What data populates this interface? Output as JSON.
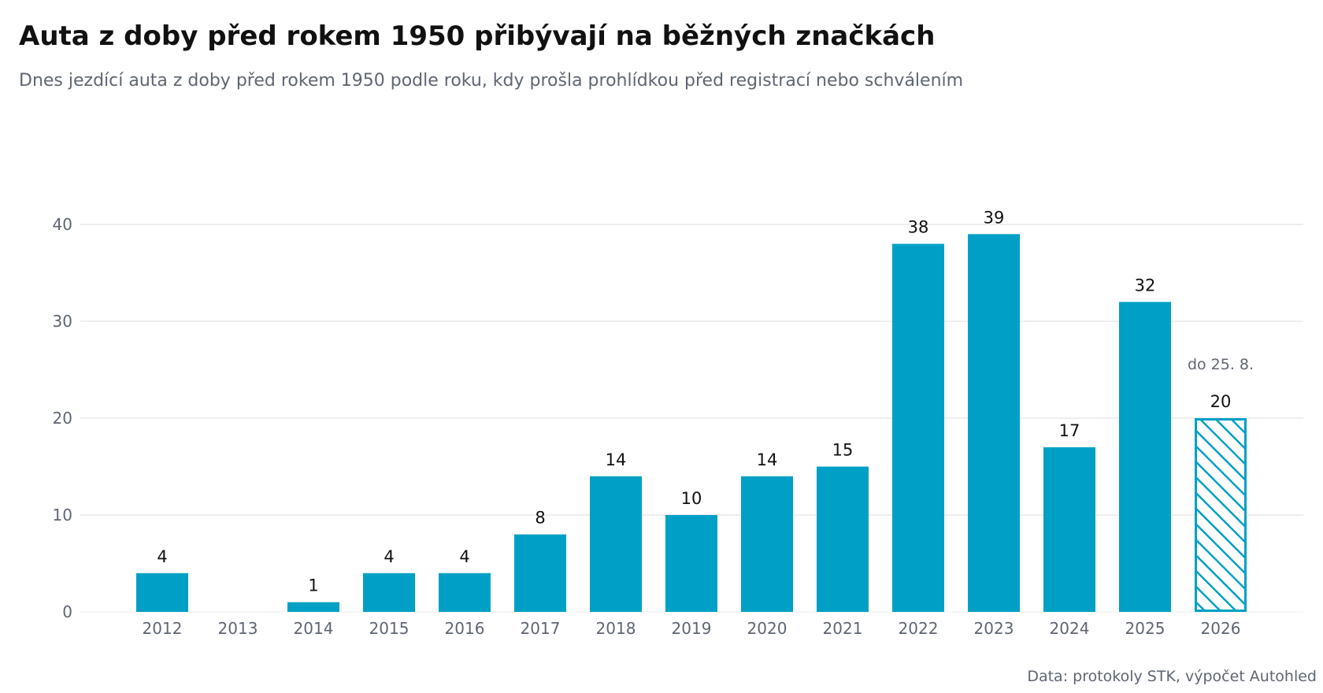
{
  "header": {
    "title": "Auta z doby před rokem 1950 přibývají na běžných značkách",
    "subtitle": "Dnes jezdící auta z doby před rokem 1950 podle roku, kdy prošla prohlídkou před registrací nebo schválením"
  },
  "footer": {
    "source": "Data: protokoly STK, výpočet Autohled"
  },
  "chart_data": {
    "type": "bar",
    "categories": [
      "2012",
      "2013",
      "2014",
      "2015",
      "2016",
      "2017",
      "2018",
      "2019",
      "2020",
      "2021",
      "2022",
      "2023",
      "2024",
      "2025",
      "2026"
    ],
    "values": [
      4,
      0,
      1,
      4,
      4,
      8,
      14,
      10,
      14,
      15,
      38,
      39,
      17,
      32,
      20
    ],
    "value_labels": [
      "4",
      "",
      "1",
      "4",
      "4",
      "8",
      "14",
      "10",
      "14",
      "15",
      "38",
      "39",
      "17",
      "32",
      "20"
    ],
    "yticks": [
      0,
      10,
      20,
      30,
      40
    ],
    "ylim": [
      0,
      40
    ],
    "grid": true,
    "partial": {
      "category": "2026",
      "note": "do 25. 8.",
      "style": "hatched"
    },
    "colors": {
      "bar": "#00a0c6",
      "grid": "#eeeeee",
      "axis_text": "#5f6673"
    }
  }
}
